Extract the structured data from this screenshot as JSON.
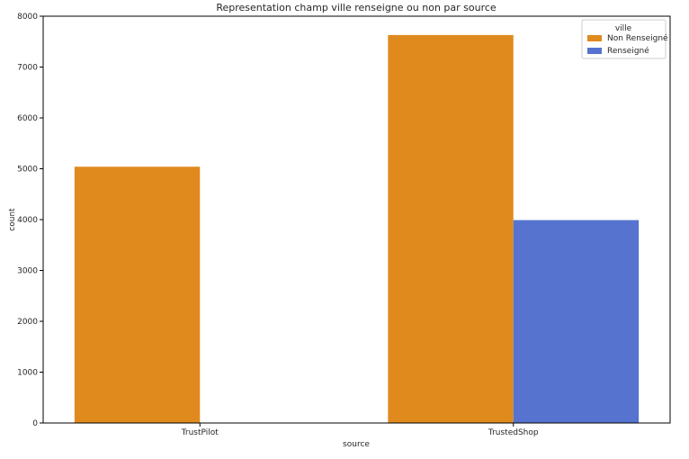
{
  "chart_data": {
    "type": "bar",
    "title": "Representation champ ville renseigne ou non par source",
    "xlabel": "source",
    "ylabel": "count",
    "categories": [
      "TrustPilot",
      "TrustedShop"
    ],
    "series": [
      {
        "name": "Non Renseigné",
        "color": "#e08a1e",
        "values": [
          5040,
          7630
        ]
      },
      {
        "name": "Renseigné",
        "color": "#5573cf",
        "values": [
          0,
          3990
        ]
      }
    ],
    "ylim": [
      0,
      8000
    ],
    "yticks": [
      0,
      1000,
      2000,
      3000,
      4000,
      5000,
      6000,
      7000,
      8000
    ],
    "legend": {
      "title": "ville",
      "placement": "top-right"
    },
    "grid": false
  }
}
